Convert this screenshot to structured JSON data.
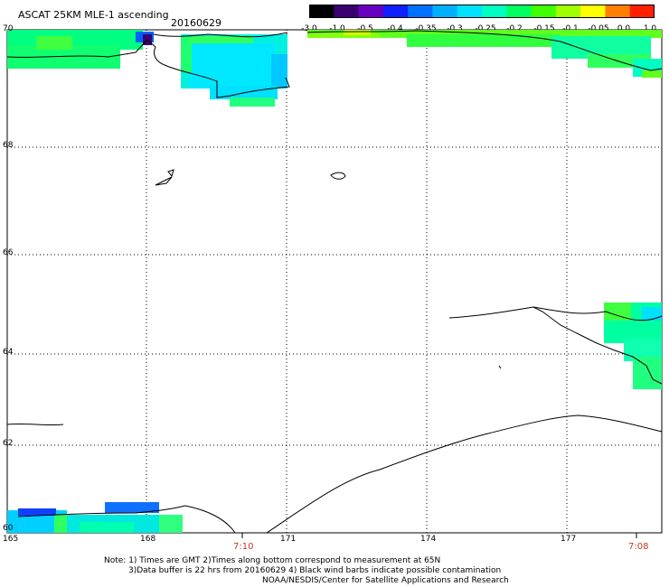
{
  "header": {
    "title": "ASCAT 25KM MLE-1 ascending",
    "date": "20160629"
  },
  "colorbar": {
    "labels": [
      "-3.0",
      "-1.0",
      "-0.5",
      "-0.4",
      "-0.35",
      "-0.3",
      "-0.25",
      "-0.2",
      "-0.15",
      "-0.1",
      "-0.05",
      "0.0",
      "1.0"
    ],
    "colors": [
      "#000000",
      "#3a0070",
      "#6a00c0",
      "#1020ff",
      "#0070ff",
      "#00b0ff",
      "#00e0ff",
      "#00ffc0",
      "#00ff60",
      "#40ff00",
      "#a0ff00",
      "#ffff00",
      "#ff8000",
      "#ff2000"
    ]
  },
  "axes": {
    "lat_labels": [
      "70",
      "68",
      "66",
      "64",
      "62",
      "60"
    ],
    "lon_labels": [
      "165",
      "168",
      "171",
      "174",
      "177"
    ]
  },
  "times": [
    "7:10",
    "7:08"
  ],
  "notes": [
    "Note: 1) Times are GMT 2)Times along bottom correspond to measurement at 65N",
    "3)Data buffer is 22 hrs from 20160629 4) Black wind barbs indicate possible contamination",
    "NOAA/NESDIS/Center for Satellite Applications and Research"
  ]
}
